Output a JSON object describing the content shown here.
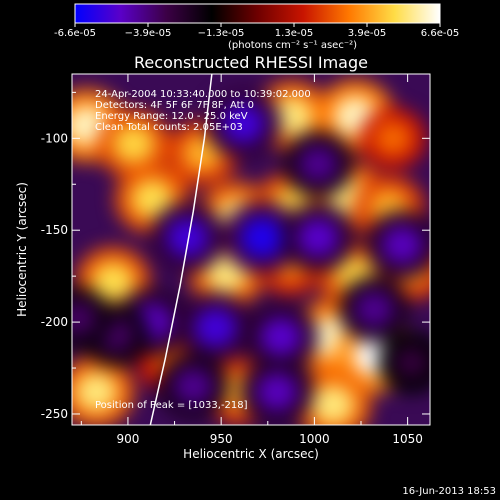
{
  "colorbar": {
    "tick_labels": [
      "-6.6e-05",
      "−3.9e-05",
      "−1.3e-05",
      "1.3e-05",
      "3.9e-05",
      "6.6e-05"
    ],
    "units": "(photons cm⁻² s⁻¹ asec⁻²)",
    "range": [
      -6.6e-05,
      6.6e-05
    ],
    "colormap": [
      "#0000ff",
      "#5a00c8",
      "#3c0046",
      "#000000",
      "#6e0000",
      "#c81400",
      "#ff7800",
      "#ffdc46",
      "#ffffff"
    ]
  },
  "chart_data": {
    "type": "heatmap",
    "title": "Reconstructed RHESSI Image",
    "xlabel": "Heliocentric X (arcsec)",
    "ylabel": "Heliocentric Y (arcsec)",
    "xlim": [
      870,
      1062
    ],
    "ylim": [
      -256,
      -65
    ],
    "xticks": [
      900,
      950,
      1000,
      1050
    ],
    "yticks": [
      -100,
      -150,
      -200,
      -250
    ],
    "annotations": [
      "24-Apr-2004 10:33:40.000 to 10:39:02.000",
      "Detectors: 4F 5F 6F 7F 8F, Att 0",
      "Energy Range: 12.0 - 25.0 keV",
      "Clean     Total counts: 2.05E+03"
    ],
    "peak_label": "Position of Peak = [1033,-218]",
    "peak": [
      1033,
      -218
    ],
    "limb_curve": [
      [
        945,
        -65
      ],
      [
        941,
        -100
      ],
      [
        935,
        -140
      ],
      [
        928,
        -180
      ],
      [
        920,
        -220
      ],
      [
        912,
        -256
      ]
    ],
    "sources": [
      [
        878,
        -93,
        6e-05
      ],
      [
        903,
        -103,
        4.8e-05
      ],
      [
        940,
        -108,
        4.2e-05
      ],
      [
        988,
        -88,
        5.4e-05
      ],
      [
        1022,
        -88,
        6e-05
      ],
      [
        1042,
        -100,
        3e-05
      ],
      [
        913,
        -133,
        5e-05
      ],
      [
        958,
        -143,
        5.4e-05
      ],
      [
        988,
        -137,
        4.8e-05
      ],
      [
        1018,
        -132,
        5.4e-05
      ],
      [
        1040,
        -138,
        4.2e-05
      ],
      [
        892,
        -178,
        5e-05
      ],
      [
        953,
        -173,
        5.4e-05
      ],
      [
        987,
        -168,
        3.6e-05
      ],
      [
        1022,
        -175,
        4.8e-05
      ],
      [
        1052,
        -170,
        4.2e-05
      ],
      [
        1008,
        -208,
        6e-05
      ],
      [
        1033,
        -218,
        6.6e-05
      ],
      [
        1010,
        -245,
        5.4e-05
      ],
      [
        883,
        -238,
        5.4e-05
      ],
      [
        923,
        -222,
        3e-05
      ],
      [
        960,
        -238,
        4.2e-05
      ],
      [
        962,
        -92,
        -5.4e-05
      ],
      [
        1002,
        -114,
        -4.2e-05
      ],
      [
        932,
        -154,
        -5.4e-05
      ],
      [
        972,
        -154,
        -6e-05
      ],
      [
        1002,
        -154,
        -5e-05
      ],
      [
        1047,
        -158,
        -4.8e-05
      ],
      [
        913,
        -200,
        -4.8e-05
      ],
      [
        947,
        -203,
        -5.4e-05
      ],
      [
        982,
        -208,
        -5e-05
      ],
      [
        1032,
        -193,
        -4.2e-05
      ],
      [
        1052,
        -222,
        -3e-05
      ],
      [
        935,
        -235,
        -4.2e-05
      ],
      [
        980,
        -238,
        -4.8e-05
      ],
      [
        893,
        -207,
        -3.6e-05
      ],
      [
        873,
        -198,
        -3.6e-05
      ]
    ]
  },
  "footer": {
    "timestamp": "16-Jun-2013 18:53"
  }
}
